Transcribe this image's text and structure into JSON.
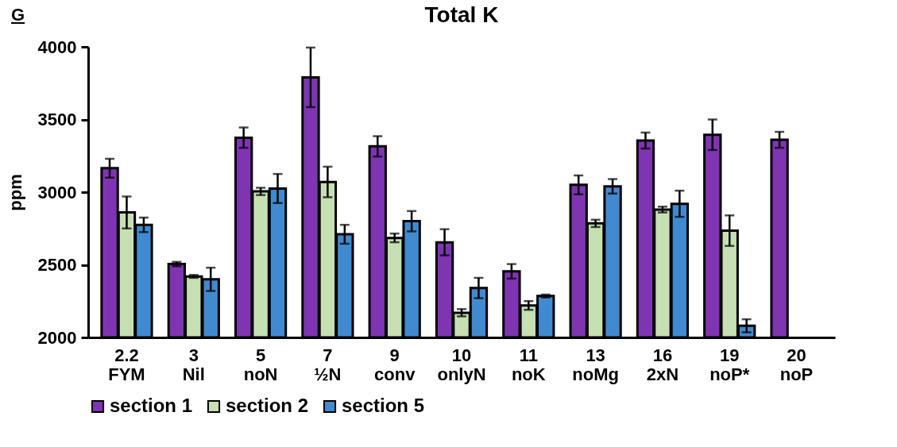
{
  "chart_data": {
    "type": "bar",
    "title": "Total K",
    "ylabel": "ppm",
    "annotations": [
      "G"
    ],
    "categories": [
      "2.2\nFYM",
      "3\nNil",
      "5\nnoN",
      "7\n½N",
      "9\nconv",
      "10\nonlyN",
      "11\nnoK",
      "13\nnoMg",
      "16\n2xN",
      "19\nnoP*",
      "20\nnoP"
    ],
    "series": [
      {
        "name": "section 1",
        "color": "#7f35b2",
        "values": [
          3165,
          2505,
          3375,
          3790,
          3315,
          2655,
          2455,
          3050,
          3355,
          3395,
          3360
        ],
        "errors": [
          65,
          15,
          70,
          205,
          70,
          90,
          50,
          65,
          55,
          105,
          55
        ]
      },
      {
        "name": "section 2",
        "color": "#c6e0b4",
        "values": [
          2860,
          2420,
          3005,
          3070,
          2685,
          2170,
          2220,
          2785,
          2880,
          2735,
          null
        ],
        "errors": [
          110,
          10,
          25,
          105,
          30,
          25,
          30,
          25,
          20,
          105,
          null
        ]
      },
      {
        "name": "section 5",
        "color": "#418ad0",
        "values": [
          2775,
          2400,
          3025,
          2710,
          2800,
          2340,
          2285,
          3040,
          2920,
          2080,
          null
        ],
        "errors": [
          50,
          80,
          100,
          65,
          70,
          70,
          10,
          50,
          90,
          45,
          null
        ]
      }
    ],
    "ylim": [
      2000,
      4000
    ],
    "yticks": [
      2000,
      2500,
      3000,
      3500,
      4000
    ],
    "grid": false,
    "legend": "bottom"
  }
}
